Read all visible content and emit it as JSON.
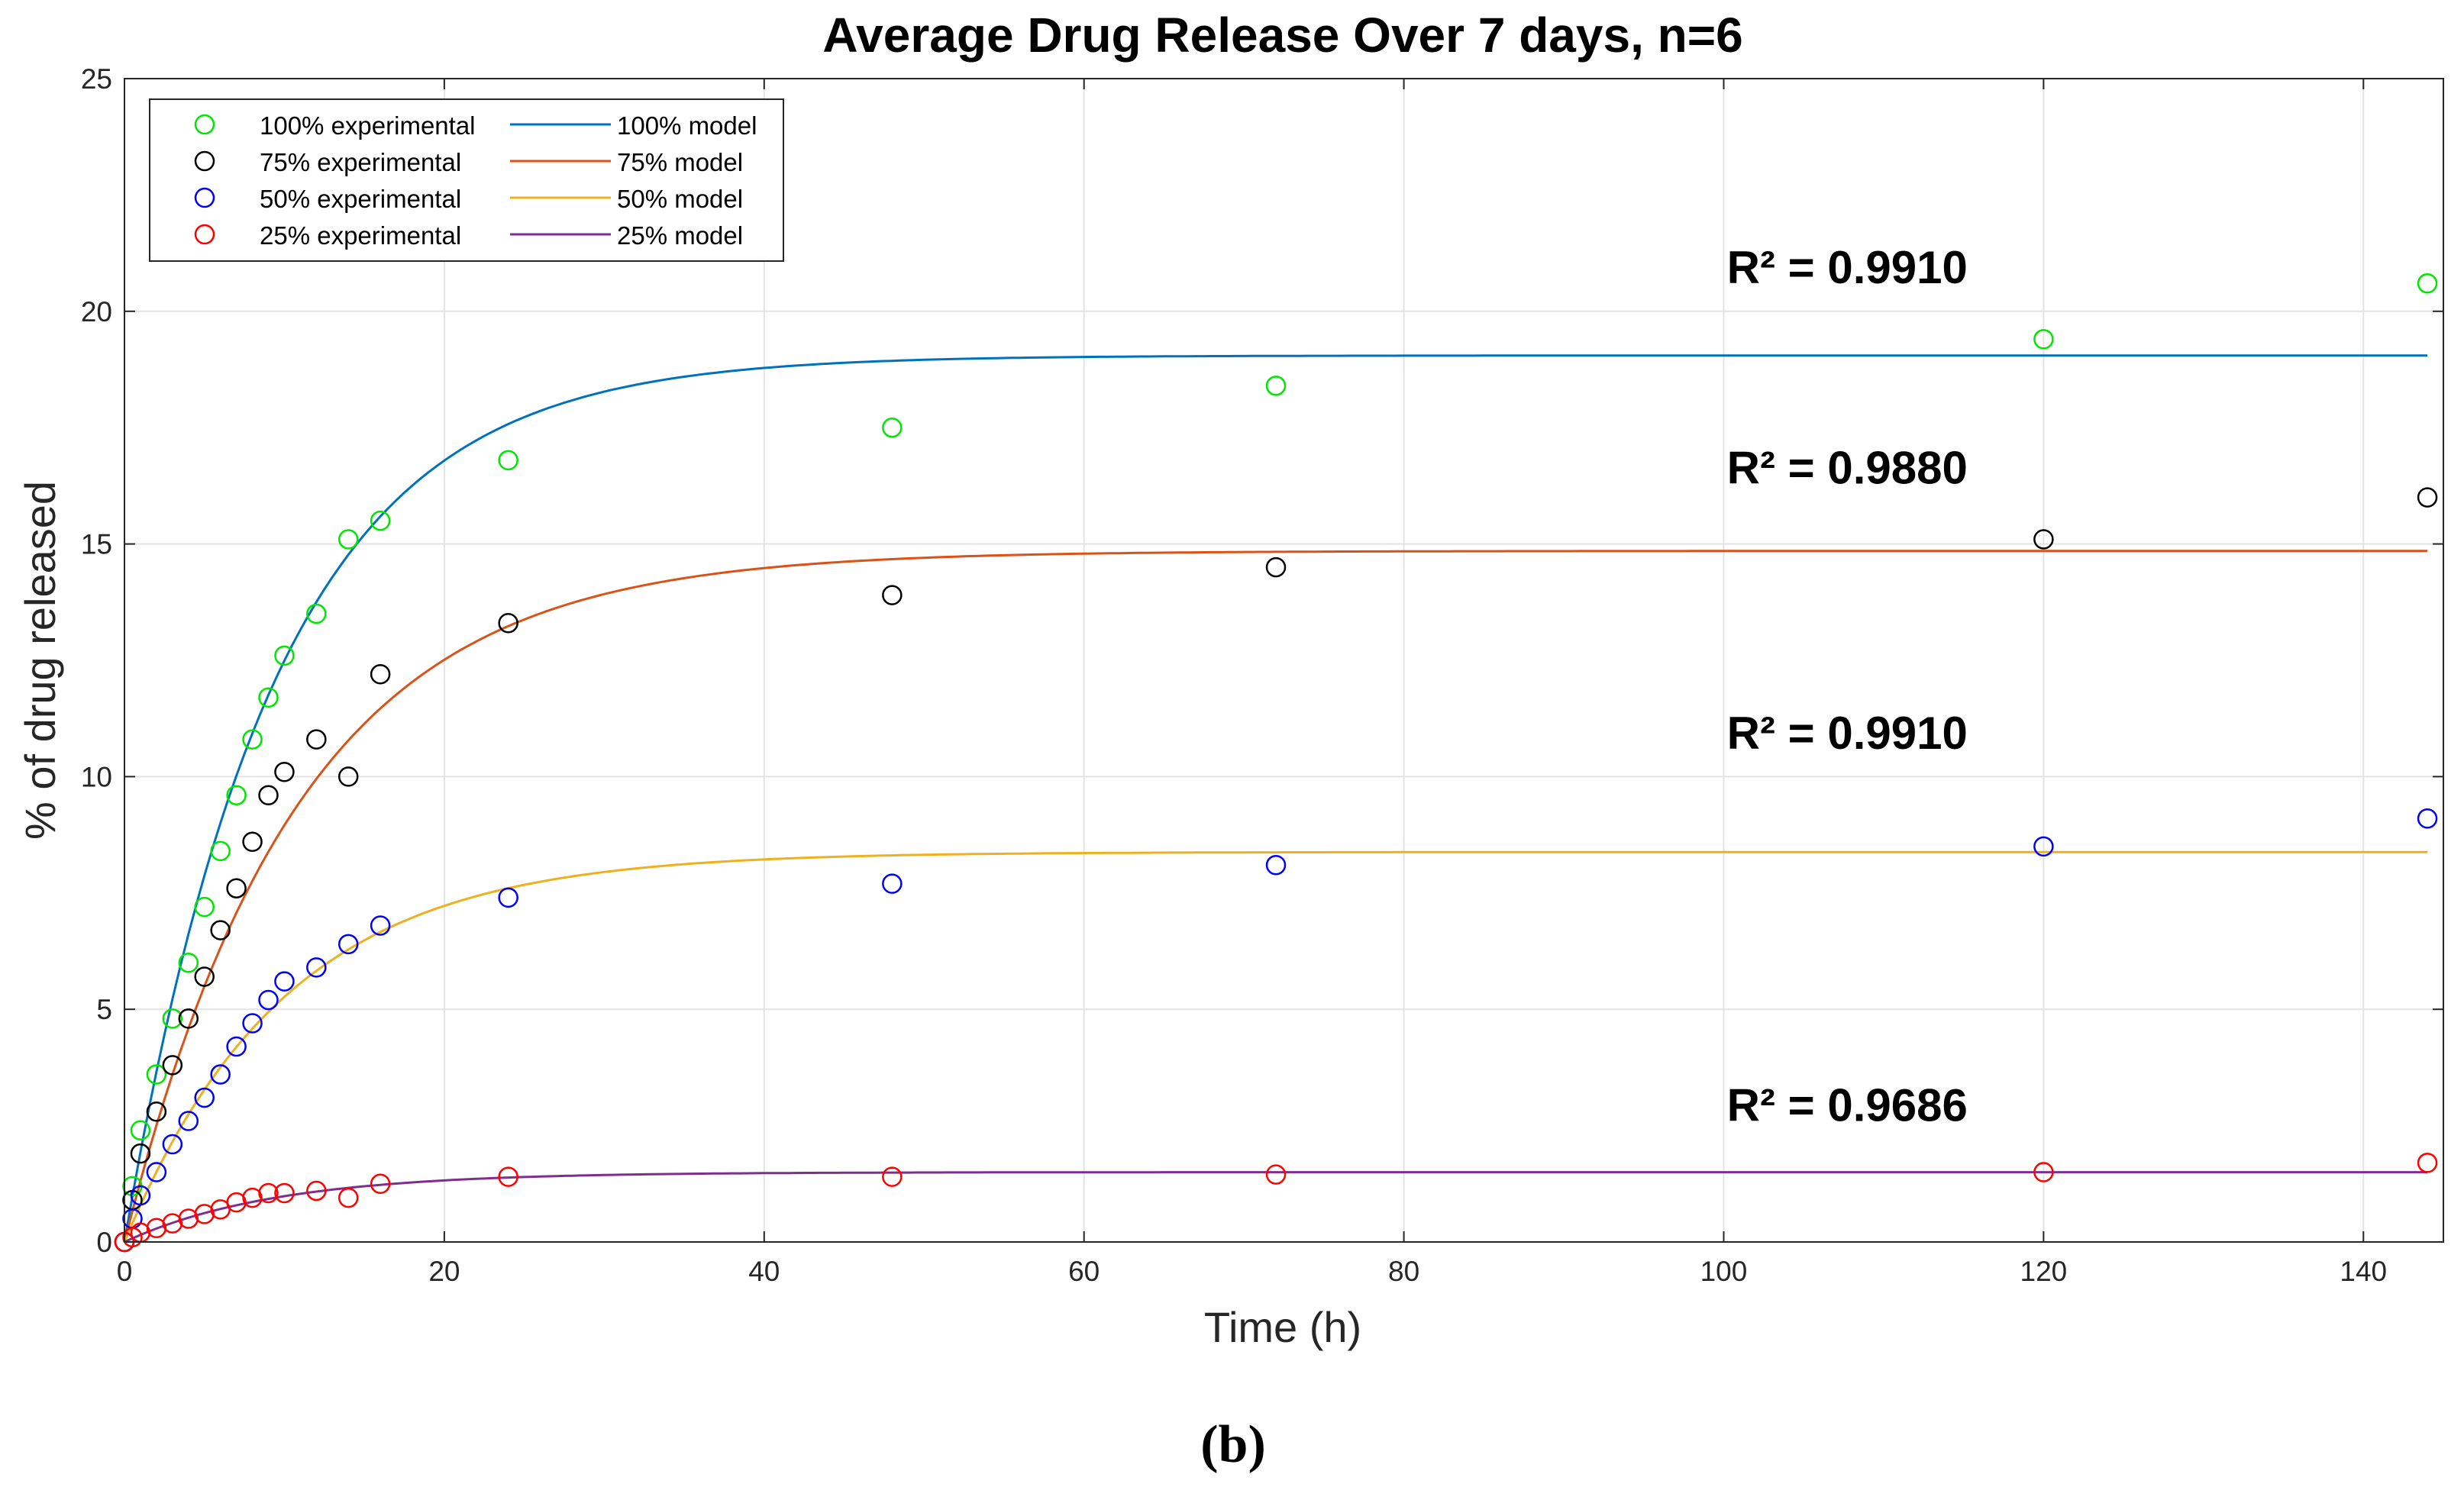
{
  "caption": "(b)",
  "chart_data": {
    "type": "scatter",
    "title": "Average Drug Release Over 7 days, n=6",
    "xlabel": "Time (h)",
    "ylabel": "% of drug released",
    "xlim": [
      0,
      145
    ],
    "ylim": [
      0,
      25
    ],
    "xticks": [
      0,
      20,
      40,
      60,
      80,
      100,
      120,
      140
    ],
    "yticks": [
      0,
      5,
      10,
      15,
      20,
      25
    ],
    "grid": true,
    "legend_position": "top-left",
    "time_points": [
      0,
      0.5,
      1,
      2,
      3,
      4,
      5,
      6,
      7,
      8,
      9,
      10,
      12,
      14,
      16,
      24,
      48,
      72,
      120,
      144
    ],
    "series": [
      {
        "name": "100% experimental",
        "kind": "scatter",
        "color": "#00e600",
        "values": [
          0,
          1.2,
          2.4,
          3.6,
          4.8,
          6.0,
          7.2,
          8.4,
          9.6,
          10.8,
          11.7,
          12.6,
          13.5,
          15.1,
          15.5,
          16.8,
          17.5,
          18.4,
          19.4,
          20.6
        ]
      },
      {
        "name": "75% experimental",
        "kind": "scatter",
        "color": "#000000",
        "values": [
          0,
          0.9,
          1.9,
          2.8,
          3.8,
          4.8,
          5.7,
          6.7,
          7.6,
          8.6,
          9.6,
          10.1,
          10.8,
          10.0,
          12.2,
          13.3,
          13.9,
          14.5,
          15.1,
          16.0
        ]
      },
      {
        "name": "50% experimental",
        "kind": "scatter",
        "color": "#0000ff",
        "values": [
          0,
          0.5,
          1.0,
          1.5,
          2.1,
          2.6,
          3.1,
          3.6,
          4.2,
          4.7,
          5.2,
          5.6,
          5.9,
          6.4,
          6.8,
          7.4,
          7.7,
          8.1,
          8.5,
          9.1
        ]
      },
      {
        "name": "25% experimental",
        "kind": "scatter",
        "color": "#ff0000",
        "values": [
          0,
          0.1,
          0.2,
          0.3,
          0.4,
          0.5,
          0.6,
          0.7,
          0.85,
          0.95,
          1.05,
          1.05,
          1.1,
          0.95,
          1.25,
          1.4,
          1.4,
          1.45,
          1.5,
          1.7
        ]
      },
      {
        "name": "100% model",
        "kind": "line",
        "color": "#0072bd",
        "plateau": 19.05,
        "half_time": 6.5
      },
      {
        "name": "75% model",
        "kind": "line",
        "color": "#d95319",
        "plateau": 14.85,
        "half_time": 7.5
      },
      {
        "name": "50% model",
        "kind": "line",
        "color": "#edb120",
        "plateau": 8.38,
        "half_time": 7.0
      },
      {
        "name": "25% model",
        "kind": "line",
        "color": "#7e2f8e",
        "plateau": 1.5,
        "half_time": 6.5
      }
    ],
    "annotations": [
      {
        "text": "R² = 0.9910",
        "x": 100.2,
        "y": 20.6
      },
      {
        "text": "R² = 0.9880",
        "x": 100.2,
        "y": 16.3
      },
      {
        "text": "R² = 0.9910",
        "x": 100.2,
        "y": 10.6
      },
      {
        "text": "R² = 0.9686",
        "x": 100.2,
        "y": 2.6
      }
    ]
  }
}
